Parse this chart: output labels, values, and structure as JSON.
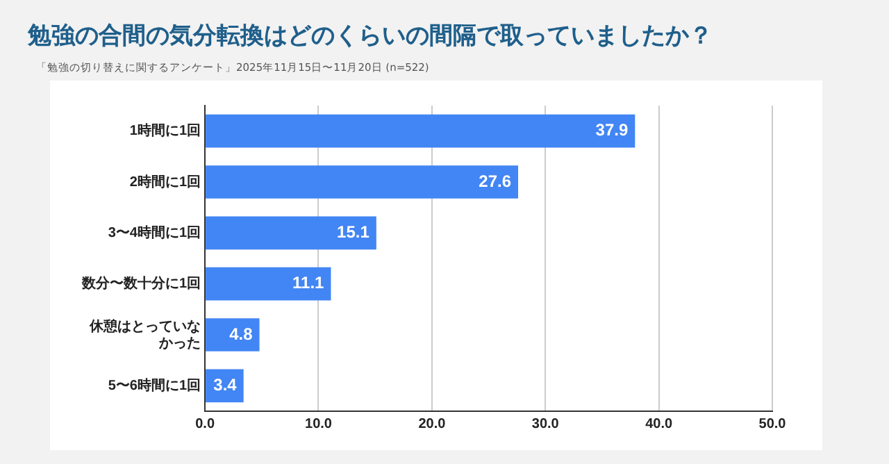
{
  "chart_data": {
    "type": "bar",
    "orientation": "horizontal",
    "title": "勉強の合間の気分転換はどのくらいの間隔で取っていましたか？",
    "subtitle": "「勉強の切り替えに関するアンケート」2025年11月15日〜11月20日 (n=522)",
    "categories": [
      "1時間に1回",
      "2時間に1回",
      "3〜4時間に1回",
      "数分〜数十分に1回",
      "休憩はとっていなかった",
      "5〜6時間に1回"
    ],
    "values": [
      37.9,
      27.6,
      15.1,
      11.1,
      4.8,
      3.4
    ],
    "color": "#4285f4",
    "xlim": [
      0,
      50
    ],
    "xticks": [
      {
        "value": 0,
        "label": "0.0"
      },
      {
        "value": 10,
        "label": "10.0"
      },
      {
        "value": 20,
        "label": "20.0"
      },
      {
        "value": 30,
        "label": "30.0"
      },
      {
        "value": 40,
        "label": "40.0"
      },
      {
        "value": 50,
        "label": "50.0"
      }
    ],
    "grid": "x",
    "legend": false,
    "data_labels": true
  }
}
